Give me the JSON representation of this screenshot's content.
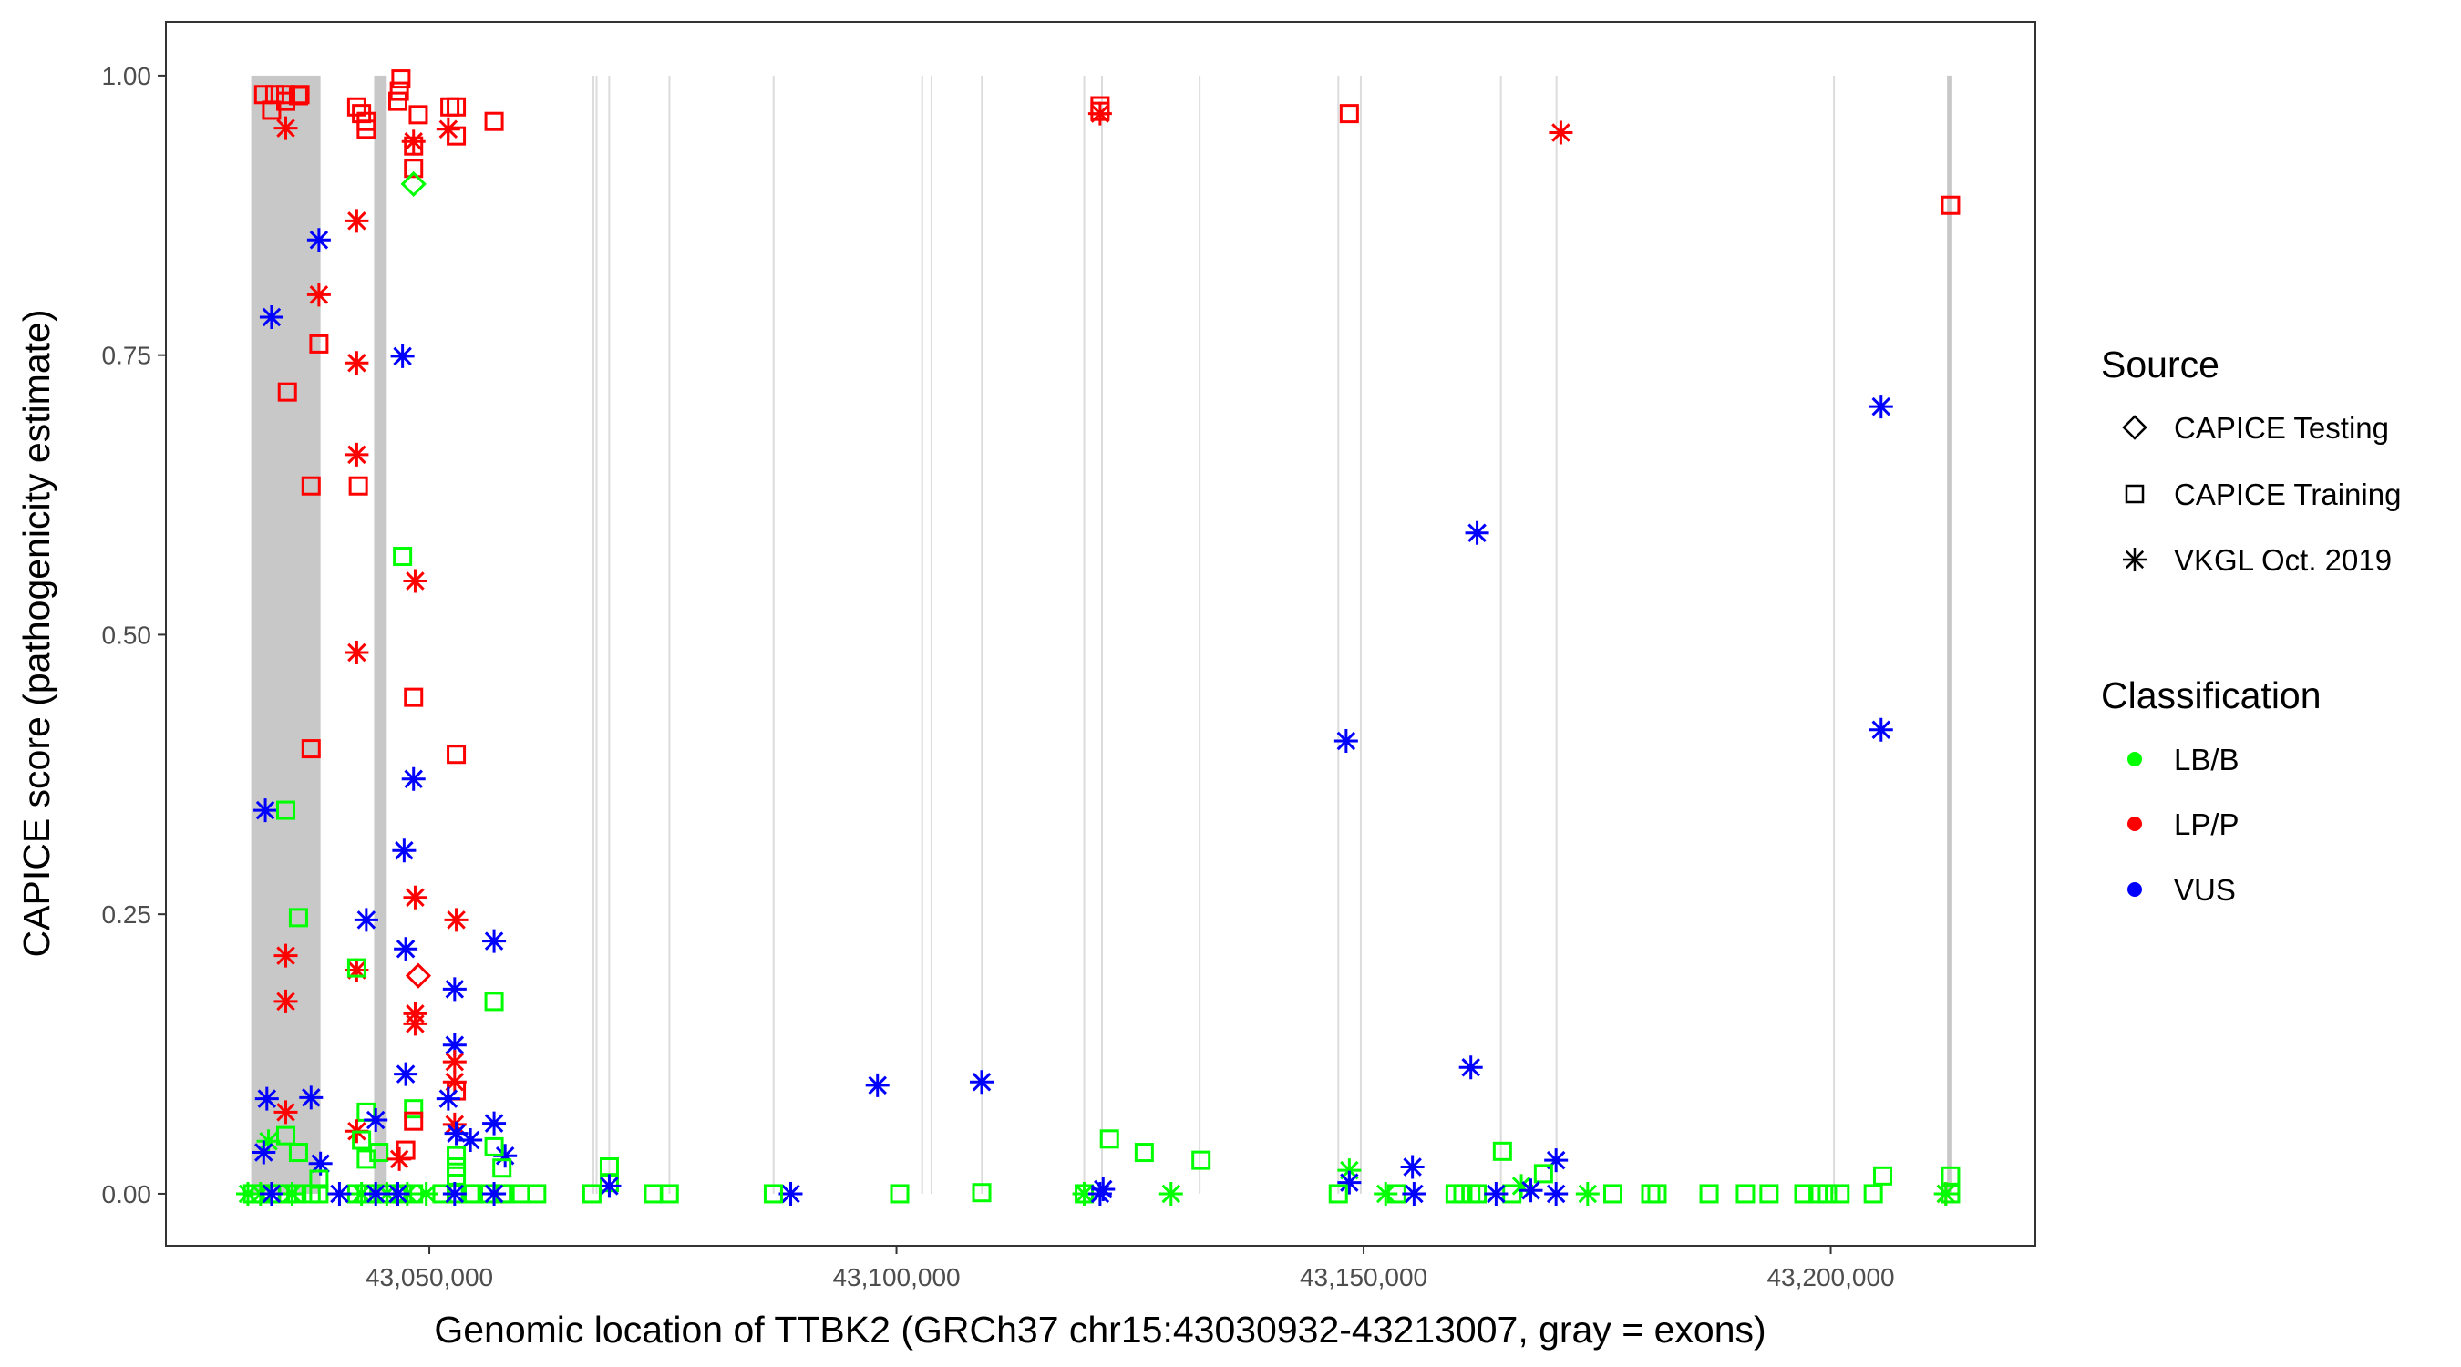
{
  "chart_data": {
    "type": "scatter",
    "xlabel": "Genomic location of TTBK2 (GRCh37 chr15:43030932-43213007, gray = exons)",
    "ylabel": "CAPICE score (pathogenicity estimate)",
    "xlim": [
      43021800,
      43221900
    ],
    "ylim": [
      -0.0465,
      1.048
    ],
    "x_ticks": [
      43050000,
      43100000,
      43150000,
      43200000
    ],
    "x_tick_labels": [
      "43,050,000",
      "43,100,000",
      "43,150,000",
      "43,200,000"
    ],
    "y_ticks": [
      0,
      0.25,
      0.5,
      0.75,
      1.0
    ],
    "y_tick_labels": [
      "0.00",
      "0.25",
      "0.50",
      "0.75",
      "1.00"
    ],
    "grid": false,
    "legend_position": "right",
    "legend": {
      "source_title": "Source",
      "sources": [
        {
          "label": "CAPICE Testing",
          "shape": "diamond"
        },
        {
          "label": "CAPICE Training",
          "shape": "square"
        },
        {
          "label": "VKGL Oct. 2019",
          "shape": "asterisk"
        }
      ],
      "class_title": "Classification",
      "classes": [
        {
          "label": "LB/B",
          "color": "#00ff00"
        },
        {
          "label": "LP/P",
          "color": "#ff0000"
        },
        {
          "label": "VUS",
          "color": "#0000ff"
        }
      ]
    },
    "exons": [
      [
        43030932,
        43038350
      ],
      [
        43044090,
        43045440
      ],
      [
        43067400,
        43067650
      ],
      [
        43067800,
        43068000
      ],
      [
        43069150,
        43069350
      ],
      [
        43075600,
        43075750
      ],
      [
        43086750,
        43086900
      ],
      [
        43102650,
        43102800
      ],
      [
        43103650,
        43103800
      ],
      [
        43109050,
        43109200
      ],
      [
        43120000,
        43120150
      ],
      [
        43121900,
        43122050
      ],
      [
        43132350,
        43132500
      ],
      [
        43147200,
        43147350
      ],
      [
        43149600,
        43149750
      ],
      [
        43164600,
        43164750
      ],
      [
        43170550,
        43170700
      ],
      [
        43200250,
        43200400
      ],
      [
        43212450,
        43213007
      ]
    ],
    "points_format": [
      "position",
      "score",
      "source_index",
      "class_index"
    ],
    "points": [
      [
        43032270,
        0.983,
        1,
        1
      ],
      [
        43033450,
        0.983,
        1,
        1
      ],
      [
        43034630,
        0.983,
        1,
        1
      ],
      [
        43035990,
        0.982,
        1,
        1
      ],
      [
        43033110,
        0.969,
        1,
        1
      ],
      [
        43034630,
        0.977,
        1,
        1
      ],
      [
        43036150,
        0.983,
        1,
        1
      ],
      [
        43034630,
        0.953,
        2,
        1
      ],
      [
        43042230,
        0.972,
        1,
        1
      ],
      [
        43042740,
        0.966,
        1,
        1
      ],
      [
        43043250,
        0.959,
        1,
        1
      ],
      [
        43043250,
        0.952,
        1,
        1
      ],
      [
        43046960,
        0.997,
        1,
        1
      ],
      [
        43046790,
        0.986,
        1,
        1
      ],
      [
        43046630,
        0.977,
        1,
        1
      ],
      [
        43048820,
        0.965,
        1,
        1
      ],
      [
        43052200,
        0.972,
        1,
        1
      ],
      [
        43052880,
        0.972,
        1,
        1
      ],
      [
        43052880,
        0.946,
        1,
        1
      ],
      [
        43056930,
        0.959,
        1,
        1
      ],
      [
        43048310,
        0.937,
        1,
        1
      ],
      [
        43048310,
        0.917,
        1,
        1
      ],
      [
        43048310,
        0.941,
        2,
        1
      ],
      [
        43052030,
        0.952,
        2,
        1
      ],
      [
        43048310,
        0.903,
        0,
        0
      ],
      [
        43042230,
        0.87,
        2,
        1
      ],
      [
        43038180,
        0.853,
        2,
        2
      ],
      [
        43038180,
        0.804,
        2,
        1
      ],
      [
        43033110,
        0.784,
        2,
        2
      ],
      [
        43038180,
        0.76,
        1,
        1
      ],
      [
        43042230,
        0.743,
        2,
        1
      ],
      [
        43047130,
        0.749,
        2,
        2
      ],
      [
        43034800,
        0.717,
        1,
        1
      ],
      [
        43042230,
        0.661,
        2,
        1
      ],
      [
        43037340,
        0.633,
        1,
        1
      ],
      [
        43042400,
        0.633,
        1,
        1
      ],
      [
        43047130,
        0.57,
        1,
        0
      ],
      [
        43048480,
        0.548,
        2,
        1
      ],
      [
        43042230,
        0.484,
        2,
        1
      ],
      [
        43048310,
        0.444,
        1,
        1
      ],
      [
        43052880,
        0.393,
        1,
        1
      ],
      [
        43037340,
        0.398,
        1,
        1
      ],
      [
        43048310,
        0.371,
        2,
        2
      ],
      [
        43032440,
        0.343,
        2,
        2
      ],
      [
        43034630,
        0.343,
        1,
        0
      ],
      [
        43047300,
        0.307,
        2,
        2
      ],
      [
        43048480,
        0.265,
        2,
        1
      ],
      [
        43035990,
        0.247,
        1,
        0
      ],
      [
        43043250,
        0.245,
        2,
        2
      ],
      [
        43052880,
        0.245,
        2,
        1
      ],
      [
        43056930,
        0.226,
        2,
        2
      ],
      [
        43047470,
        0.219,
        2,
        2
      ],
      [
        43034630,
        0.213,
        2,
        1
      ],
      [
        43048820,
        0.195,
        0,
        1
      ],
      [
        43042230,
        0.2,
        2,
        1
      ],
      [
        43042230,
        0.202,
        1,
        0
      ],
      [
        43052710,
        0.183,
        2,
        2
      ],
      [
        43056930,
        0.172,
        1,
        0
      ],
      [
        43034630,
        0.172,
        2,
        1
      ],
      [
        43048480,
        0.161,
        2,
        1
      ],
      [
        43048480,
        0.152,
        2,
        1
      ],
      [
        43052710,
        0.133,
        2,
        2
      ],
      [
        43052710,
        0.118,
        2,
        1
      ],
      [
        43052710,
        0.1,
        2,
        1
      ],
      [
        43052880,
        0.092,
        1,
        1
      ],
      [
        43052030,
        0.085,
        2,
        2
      ],
      [
        43032610,
        0.085,
        2,
        2
      ],
      [
        43037340,
        0.086,
        2,
        2
      ],
      [
        43034630,
        0.073,
        2,
        1
      ],
      [
        43047470,
        0.107,
        2,
        2
      ],
      [
        43043250,
        0.073,
        1,
        0
      ],
      [
        43044260,
        0.066,
        2,
        2
      ],
      [
        43048310,
        0.076,
        1,
        0
      ],
      [
        43048310,
        0.065,
        1,
        1
      ],
      [
        43056930,
        0.063,
        2,
        2
      ],
      [
        43052710,
        0.062,
        2,
        1
      ],
      [
        43042230,
        0.056,
        2,
        1
      ],
      [
        43042740,
        0.048,
        1,
        0
      ],
      [
        43052880,
        0.054,
        2,
        2
      ],
      [
        43054400,
        0.048,
        2,
        2
      ],
      [
        43035990,
        0.037,
        1,
        0
      ],
      [
        43034630,
        0.052,
        1,
        0
      ],
      [
        43032780,
        0.047,
        2,
        0
      ],
      [
        43032270,
        0.037,
        2,
        2
      ],
      [
        43058110,
        0.034,
        2,
        2
      ],
      [
        43044600,
        0.037,
        1,
        0
      ],
      [
        43056930,
        0.042,
        1,
        0
      ],
      [
        43043250,
        0.031,
        1,
        0
      ],
      [
        43047470,
        0.039,
        1,
        1
      ],
      [
        43046790,
        0.031,
        2,
        1
      ],
      [
        43038350,
        0.027,
        2,
        2
      ],
      [
        43052880,
        0.034,
        1,
        0
      ],
      [
        43052880,
        0.024,
        1,
        0
      ],
      [
        43052880,
        0.016,
        1,
        0
      ],
      [
        43038180,
        0.013,
        1,
        0
      ],
      [
        43057770,
        0.023,
        1,
        0
      ],
      [
        43031090,
        0,
        1,
        0
      ],
      [
        43031930,
        0,
        1,
        0
      ],
      [
        43033110,
        0,
        1,
        0
      ],
      [
        43033960,
        0,
        1,
        0
      ],
      [
        43034800,
        0,
        1,
        0
      ],
      [
        43035820,
        0,
        1,
        0
      ],
      [
        43037340,
        0,
        1,
        0
      ],
      [
        43038180,
        0,
        1,
        0
      ],
      [
        43042230,
        0,
        1,
        0
      ],
      [
        43043250,
        0,
        1,
        0
      ],
      [
        43044600,
        0,
        1,
        0
      ],
      [
        43045440,
        0,
        1,
        0
      ],
      [
        43047130,
        0,
        1,
        0
      ],
      [
        43048310,
        0,
        1,
        0
      ],
      [
        43051360,
        0,
        1,
        0
      ],
      [
        43052880,
        0,
        1,
        0
      ],
      [
        43054400,
        0,
        1,
        0
      ],
      [
        43054730,
        0,
        1,
        0
      ],
      [
        43056420,
        0,
        1,
        0
      ],
      [
        43057770,
        0,
        1,
        0
      ],
      [
        43058110,
        0,
        1,
        0
      ],
      [
        43059800,
        0,
        1,
        0
      ],
      [
        43061490,
        0,
        1,
        0
      ],
      [
        43030580,
        0,
        2,
        0
      ],
      [
        43031930,
        0,
        2,
        0
      ],
      [
        43035310,
        0,
        2,
        0
      ],
      [
        43042740,
        0,
        2,
        0
      ],
      [
        43045440,
        0,
        2,
        0
      ],
      [
        43047640,
        0,
        2,
        0
      ],
      [
        43049670,
        0,
        2,
        0
      ],
      [
        43033110,
        0,
        2,
        2
      ],
      [
        43040380,
        0,
        2,
        2
      ],
      [
        43044260,
        0,
        2,
        2
      ],
      [
        43046630,
        0,
        2,
        2
      ],
      [
        43052710,
        0,
        2,
        2
      ],
      [
        43056930,
        0,
        2,
        2
      ],
      [
        43069260,
        0.024,
        1,
        0
      ],
      [
        43069260,
        0.01,
        1,
        0
      ],
      [
        43069260,
        0.007,
        2,
        2
      ],
      [
        43088680,
        0,
        2,
        2
      ],
      [
        43097970,
        0.097,
        2,
        2
      ],
      [
        43109120,
        0.1,
        2,
        2
      ],
      [
        43100340,
        0,
        1,
        0
      ],
      [
        43109120,
        0.001,
        1,
        0
      ],
      [
        43067400,
        0,
        1,
        0
      ],
      [
        43073990,
        0,
        1,
        0
      ],
      [
        43075680,
        0,
        1,
        0
      ],
      [
        43086820,
        0,
        1,
        0
      ],
      [
        43120100,
        0,
        2,
        0
      ],
      [
        43120100,
        0,
        1,
        0
      ],
      [
        43122800,
        0.049,
        1,
        0
      ],
      [
        43126520,
        0.037,
        1,
        0
      ],
      [
        43132600,
        0.03,
        1,
        0
      ],
      [
        43122120,
        0.004,
        2,
        2
      ],
      [
        43121790,
        0,
        2,
        2
      ],
      [
        43129390,
        0,
        2,
        0
      ],
      [
        43121790,
        0.968,
        1,
        1
      ],
      [
        43121790,
        0.973,
        1,
        1
      ],
      [
        43121790,
        0.966,
        2,
        1
      ],
      [
        43148470,
        0.966,
        1,
        1
      ],
      [
        43171110,
        0.949,
        2,
        1
      ],
      [
        43212820,
        0.884,
        1,
        1
      ],
      [
        43205390,
        0.704,
        2,
        2
      ],
      [
        43162150,
        0.591,
        2,
        2
      ],
      [
        43148130,
        0.405,
        2,
        2
      ],
      [
        43205390,
        0.415,
        2,
        2
      ],
      [
        43161480,
        0.113,
        2,
        2
      ],
      [
        43164860,
        0.038,
        1,
        0
      ],
      [
        43155230,
        0.024,
        2,
        2
      ],
      [
        43170600,
        0.03,
        2,
        2
      ],
      [
        43148470,
        0.021,
        2,
        0
      ],
      [
        43148470,
        0.01,
        2,
        2
      ],
      [
        43152360,
        0,
        2,
        0
      ],
      [
        43147290,
        0,
        1,
        0
      ],
      [
        43153540,
        0,
        1,
        0
      ],
      [
        43159790,
        0,
        1,
        0
      ],
      [
        43160630,
        0,
        1,
        0
      ],
      [
        43161480,
        0,
        1,
        0
      ],
      [
        43162150,
        0,
        1,
        0
      ],
      [
        43165870,
        0,
        1,
        0
      ],
      [
        43176680,
        0,
        1,
        0
      ],
      [
        43180730,
        0,
        1,
        0
      ],
      [
        43181410,
        0,
        1,
        0
      ],
      [
        43186980,
        0,
        1,
        0
      ],
      [
        43190870,
        0,
        1,
        0
      ],
      [
        43193400,
        0,
        1,
        0
      ],
      [
        43197120,
        0,
        1,
        0
      ],
      [
        43198640,
        0,
        1,
        0
      ],
      [
        43199650,
        0,
        1,
        0
      ],
      [
        43201000,
        0,
        1,
        0
      ],
      [
        43204550,
        0,
        1,
        0
      ],
      [
        43169250,
        0.018,
        1,
        0
      ],
      [
        43205560,
        0.016,
        1,
        0
      ],
      [
        43212820,
        0.016,
        1,
        0
      ],
      [
        43212820,
        0,
        1,
        0
      ],
      [
        43166880,
        0.007,
        2,
        0
      ],
      [
        43173980,
        0,
        2,
        0
      ],
      [
        43155400,
        0,
        2,
        2
      ],
      [
        43164180,
        0,
        2,
        2
      ],
      [
        43167900,
        0.003,
        2,
        2
      ],
      [
        43170600,
        0,
        2,
        2
      ],
      [
        43212320,
        0,
        2,
        1
      ],
      [
        43212320,
        0,
        2,
        0
      ]
    ]
  }
}
